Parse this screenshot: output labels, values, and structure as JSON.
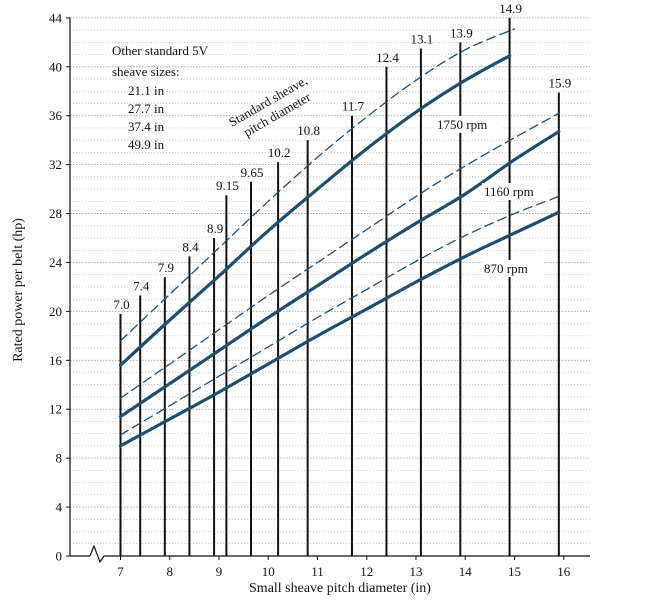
{
  "chart_data": {
    "type": "line",
    "title": "",
    "xlabel": "Small sheave pitch diameter (in)",
    "ylabel": "Rated power per belt (hp)",
    "xlim": [
      7,
      16
    ],
    "ylim": [
      0,
      44
    ],
    "x_ticks": [
      "7",
      "8",
      "9",
      "10",
      "11",
      "12",
      "13",
      "14",
      "15",
      "16"
    ],
    "y_ticks": [
      "0",
      "4",
      "8",
      "12",
      "16",
      "20",
      "24",
      "28",
      "32",
      "36",
      "40",
      "44"
    ],
    "grid": true,
    "axis_break": true,
    "standard_sheaves": [
      {
        "label": "7.0",
        "d": 7.0,
        "top": 19.8
      },
      {
        "label": "7.4",
        "d": 7.4,
        "top": 21.3
      },
      {
        "label": "7.9",
        "d": 7.9,
        "top": 22.8
      },
      {
        "label": "8.4",
        "d": 8.4,
        "top": 24.5
      },
      {
        "label": "8.9",
        "d": 8.9,
        "top": 26.0
      },
      {
        "label": "9.15",
        "d": 9.15,
        "top": 29.5
      },
      {
        "label": "9.65",
        "d": 9.65,
        "top": 30.6
      },
      {
        "label": "10.2",
        "d": 10.2,
        "top": 32.2
      },
      {
        "label": "10.8",
        "d": 10.8,
        "top": 34.0
      },
      {
        "label": "11.7",
        "d": 11.7,
        "top": 36.0
      },
      {
        "label": "12.4",
        "d": 12.4,
        "top": 40.0
      },
      {
        "label": "13.1",
        "d": 13.1,
        "top": 41.5
      },
      {
        "label": "13.9",
        "d": 13.9,
        "top": 42.0
      },
      {
        "label": "14.9",
        "d": 14.9,
        "top": 44.0
      },
      {
        "label": "15.9",
        "d": 15.9,
        "top": 37.9
      }
    ],
    "series": [
      {
        "name": "1750 rpm",
        "style": "solid",
        "x": [
          7,
          8,
          9,
          10,
          11,
          12,
          13,
          14,
          14.9
        ],
        "y": [
          15.6,
          19.3,
          22.9,
          26.6,
          30.0,
          33.3,
          36.3,
          38.9,
          40.9
        ]
      },
      {
        "name": "1750 rpm upper",
        "style": "dashed",
        "x": [
          7,
          8,
          9,
          10,
          11,
          12,
          13,
          14,
          15
        ],
        "y": [
          17.6,
          21.4,
          25.2,
          29.0,
          32.6,
          35.9,
          38.9,
          41.4,
          43.1
        ]
      },
      {
        "name": "1160 rpm",
        "style": "solid",
        "x": [
          7,
          8,
          9,
          10,
          11,
          12,
          13,
          14,
          15,
          15.9
        ],
        "y": [
          11.4,
          14.1,
          16.8,
          19.5,
          22.1,
          24.7,
          27.2,
          29.6,
          32.4,
          34.7
        ]
      },
      {
        "name": "1160 rpm upper",
        "style": "dashed",
        "x": [
          7,
          8,
          9,
          10,
          11,
          12,
          13,
          14,
          15,
          15.9
        ],
        "y": [
          12.9,
          15.7,
          18.5,
          21.3,
          24.0,
          26.7,
          29.4,
          31.9,
          34.2,
          36.2
        ]
      },
      {
        "name": "870 rpm",
        "style": "solid",
        "x": [
          7,
          8,
          9,
          10,
          11,
          12,
          13,
          14,
          15,
          15.9
        ],
        "y": [
          9.0,
          11.2,
          13.4,
          15.7,
          18.0,
          20.2,
          22.4,
          24.5,
          26.4,
          28.1
        ]
      },
      {
        "name": "870 rpm upper",
        "style": "dashed",
        "x": [
          7,
          8,
          9,
          10,
          11,
          12,
          13,
          14,
          15,
          15.9
        ],
        "y": [
          9.9,
          12.3,
          14.7,
          17.1,
          19.5,
          21.8,
          24.1,
          26.2,
          28.0,
          29.4
        ]
      }
    ],
    "curve_labels": {
      "rpm1750": "1750 rpm",
      "rpm1160": "1160 rpm",
      "rpm870": "870 rpm"
    },
    "annotation": {
      "line1": "Standard sheave,",
      "line2": "pitch diameter"
    },
    "note": {
      "title1": "Other standard 5V",
      "title2": "sheave sizes:",
      "sizes": [
        "21.1 in",
        "27.7 in",
        "37.4 in",
        "49.9 in"
      ]
    },
    "colors": {
      "curve": "#1d4e6e",
      "axis": "#111111",
      "grid": "#9a9a9a",
      "sheave_line": "#111111"
    }
  }
}
